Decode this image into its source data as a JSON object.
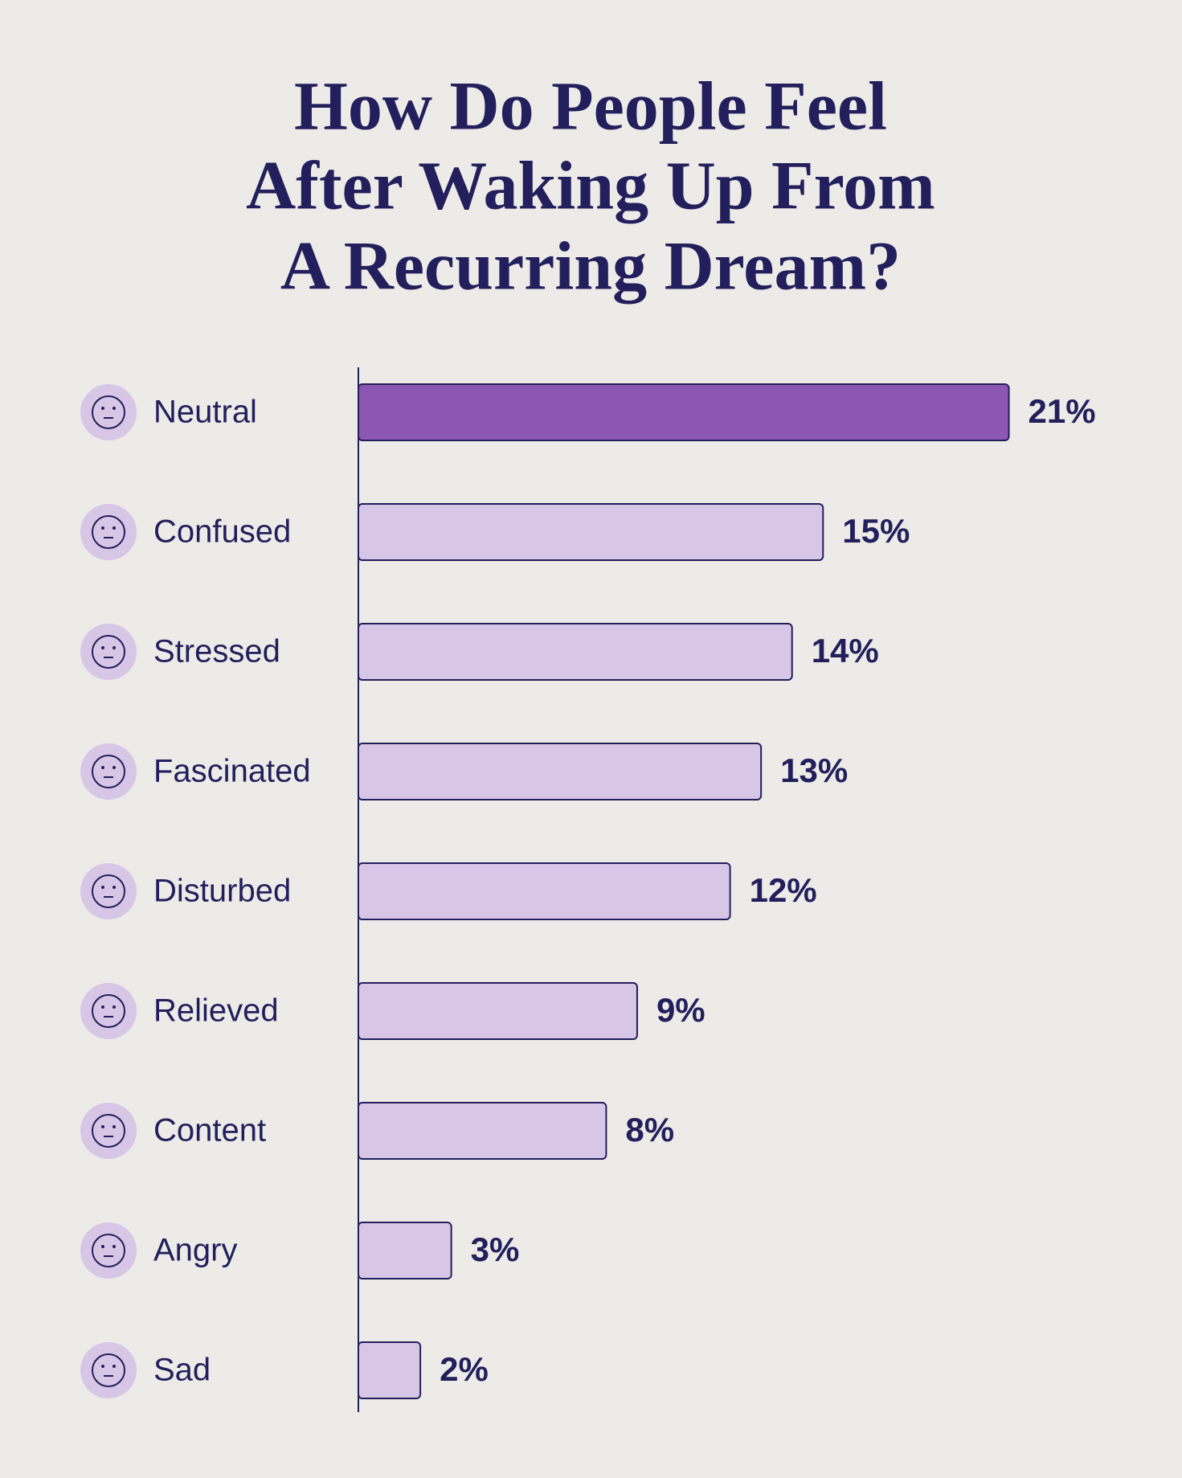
{
  "chart_data": {
    "type": "bar",
    "orientation": "horizontal",
    "title": [
      "How Do People Feel",
      "After Waking Up From",
      "A Recurring Dream?"
    ],
    "categories": [
      "Neutral",
      "Confused",
      "Stressed",
      "Fascinated",
      "Disturbed",
      "Relieved",
      "Content",
      "Angry",
      "Sad"
    ],
    "values": [
      21,
      15,
      14,
      13,
      12,
      9,
      8,
      3,
      2
    ],
    "value_labels": [
      "21%",
      "15%",
      "14%",
      "13%",
      "12%",
      "9%",
      "8%",
      "3%",
      "2%"
    ],
    "colors": [
      "#8b57b2",
      "#d8c6e6",
      "#d8c6e6",
      "#d8c6e6",
      "#d8c6e6",
      "#d8c6e6",
      "#d8c6e6",
      "#d8c6e6",
      "#d8c6e6"
    ]
  }
}
